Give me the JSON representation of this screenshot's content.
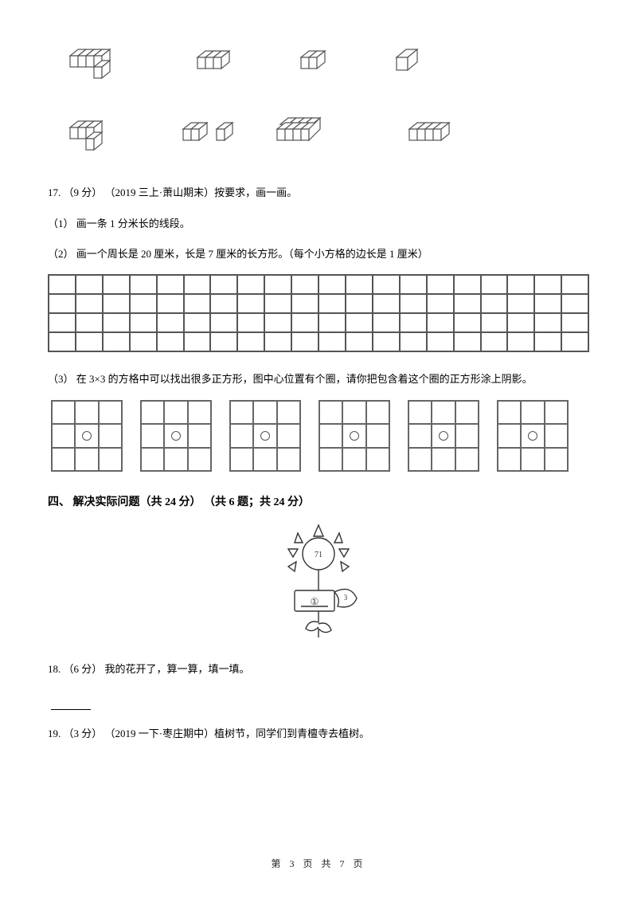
{
  "q17": {
    "header": "17. （9 分） （2019 三上·萧山期末）按要求，画一画。",
    "sub1": "（1） 画一条 1 分米长的线段。",
    "sub2": "（2） 画一个周长是 20 厘米，长是 7 厘米的长方形。（每个小方格的边长是 1 厘米）",
    "sub3": "（3） 在 3×3 的方格中可以找出很多正方形，图中心位置有个圈，请你把包含着这个圈的正方形涂上阴影。",
    "grid_rows": 4,
    "grid_cols": 20,
    "tile_count": 6,
    "cubes_row1": 4,
    "cubes_row2": 4
  },
  "section4": {
    "title": "四、 解决实际问题（共 24 分） （共 6 题；共 24 分）"
  },
  "q18": {
    "header": "18. （6 分） 我的花开了，算一算，填一填。",
    "sun_label": "71",
    "flower_label": "3",
    "flower_circle": "①"
  },
  "q19": {
    "header": "19. （3 分） （2019 一下·枣庄期中）植树节，同学们到青檀寺去植树。"
  },
  "footer": "第 3 页 共 7 页",
  "colors": {
    "stroke": "#555555",
    "text": "#000000",
    "bg": "#ffffff"
  }
}
